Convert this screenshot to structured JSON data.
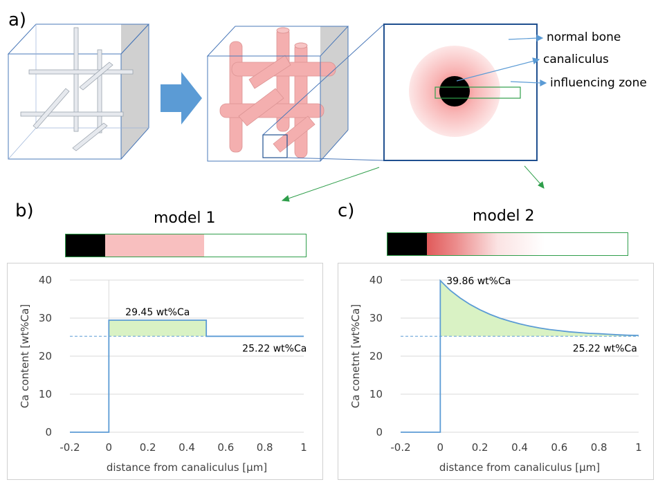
{
  "panels": {
    "a": "a)",
    "b": "b)",
    "c": "c)"
  },
  "legend": {
    "normal_bone": "normal bone",
    "canaliculus": "canaliculus",
    "influencing_zone": "influencing zone"
  },
  "models": {
    "model1": "model 1",
    "model2": "model 2"
  },
  "colors": {
    "cube_edge": "#4a78b8",
    "cube_face": "#c8c8c8",
    "tube_gray": "#dfe3ea",
    "tube_pink": "#f4a9a9",
    "arrow_blue": "#5b9bd5",
    "zone_green": "#2e9e4a",
    "fill_green": "#d9f2c4",
    "curve_blue": "#5b9bd5",
    "pink_band": "#f8bfbf",
    "red_gradient": "#e05a5a"
  },
  "chart_data": [
    {
      "type": "line",
      "title": "model 1",
      "xlabel": "distance from canaliculus [µm]",
      "ylabel": "Ca content [wt%Ca]",
      "xlim": [
        -0.2,
        1
      ],
      "ylim": [
        0,
        40
      ],
      "xticks": [
        "-0.2",
        "0",
        "0.2",
        "0.4",
        "0.6",
        "0.8",
        "1"
      ],
      "yticks": [
        "0",
        "10",
        "20",
        "30",
        "40"
      ],
      "series": [
        {
          "x": [
            -0.2,
            0,
            0,
            0.5,
            0.5,
            1
          ],
          "y": [
            0,
            0,
            29.45,
            29.45,
            25.22,
            25.22
          ]
        }
      ],
      "reference": 25.22,
      "annotations": [
        "29.45 wt%Ca",
        "25.22 wt%Ca"
      ]
    },
    {
      "type": "line",
      "title": "model 2",
      "xlabel": "distance from canaliculus [µm]",
      "ylabel": "Ca conetnt [wt%Ca]",
      "xlim": [
        -0.2,
        1
      ],
      "ylim": [
        0,
        40
      ],
      "xticks": [
        "-0.2",
        "0",
        "0.2",
        "0.4",
        "0.6",
        "0.8",
        "1"
      ],
      "yticks": [
        "0",
        "10",
        "20",
        "30",
        "40"
      ],
      "series": [
        {
          "x": [
            -0.2,
            0,
            0,
            0.05,
            0.1,
            0.15,
            0.2,
            0.25,
            0.3,
            0.35,
            0.4,
            0.45,
            0.5,
            0.55,
            0.6,
            0.65,
            0.7,
            0.75,
            0.8,
            0.85,
            0.9,
            0.95,
            1.0
          ],
          "y": [
            0,
            0,
            39.86,
            37.3,
            35.3,
            33.6,
            32.2,
            31.0,
            30.0,
            29.2,
            28.5,
            27.9,
            27.4,
            27.0,
            26.7,
            26.4,
            26.2,
            26.0,
            25.9,
            25.75,
            25.6,
            25.5,
            25.45
          ]
        }
      ],
      "reference": 25.22,
      "annotations": [
        "39.86 wt%Ca",
        "25.22 wt%Ca"
      ]
    }
  ]
}
